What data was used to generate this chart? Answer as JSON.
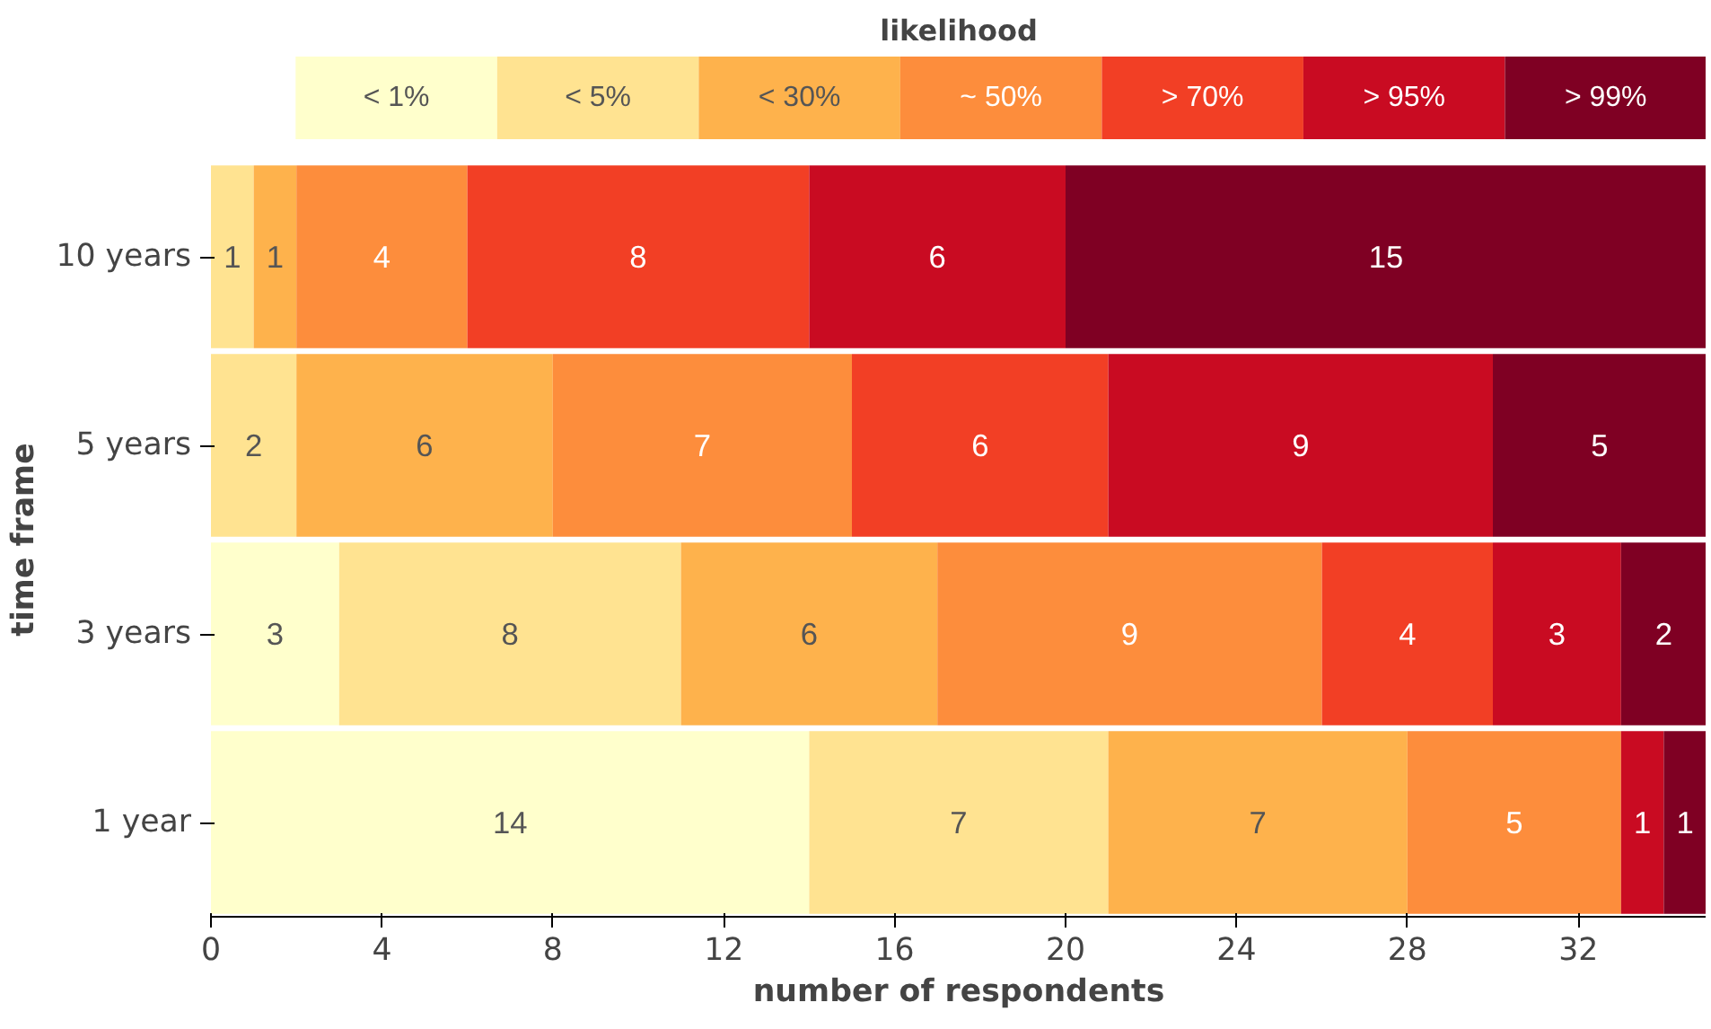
{
  "chart_data": {
    "type": "bar",
    "orientation": "horizontal",
    "stacked": true,
    "legend_title": "likelihood",
    "xlabel": "number of respondents",
    "ylabel": "time frame",
    "categories": [
      "10 years",
      "5 years",
      "3 years",
      "1 year"
    ],
    "series": [
      {
        "name": "< 1%",
        "color": "#ffffcc",
        "values": [
          0,
          0,
          3,
          14
        ],
        "value_labels": [
          null,
          null,
          "3",
          "14"
        ]
      },
      {
        "name": "< 5%",
        "color": "#ffe391",
        "values": [
          1,
          2,
          8,
          7
        ],
        "value_labels": [
          "1",
          "2",
          "8",
          "7"
        ]
      },
      {
        "name": "< 30%",
        "color": "#feb24c",
        "values": [
          1,
          6,
          6,
          7
        ],
        "value_labels": [
          "1",
          "6",
          "6",
          "7"
        ]
      },
      {
        "name": "~ 50%",
        "color": "#fd8d3c",
        "values": [
          4,
          7,
          9,
          5
        ],
        "value_labels": [
          "4",
          "7",
          "9",
          "5"
        ]
      },
      {
        "name": "> 70%",
        "color": "#f23f25",
        "values": [
          8,
          6,
          4,
          0
        ],
        "value_labels": [
          "8",
          "6",
          "4",
          null
        ]
      },
      {
        "name": "> 95%",
        "color": "#c90b22",
        "values": [
          6,
          9,
          3,
          1
        ],
        "value_labels": [
          "6",
          "9",
          "3",
          "1"
        ]
      },
      {
        "name": "> 99%",
        "color": "#7f0023",
        "values": [
          15,
          5,
          2,
          1
        ],
        "value_labels": [
          "15",
          "5",
          "2",
          "1"
        ]
      }
    ],
    "xlim": [
      0,
      35
    ],
    "xticks": [
      0,
      4,
      8,
      12,
      16,
      20,
      24,
      28,
      32
    ],
    "grid": false,
    "legend": "top"
  }
}
